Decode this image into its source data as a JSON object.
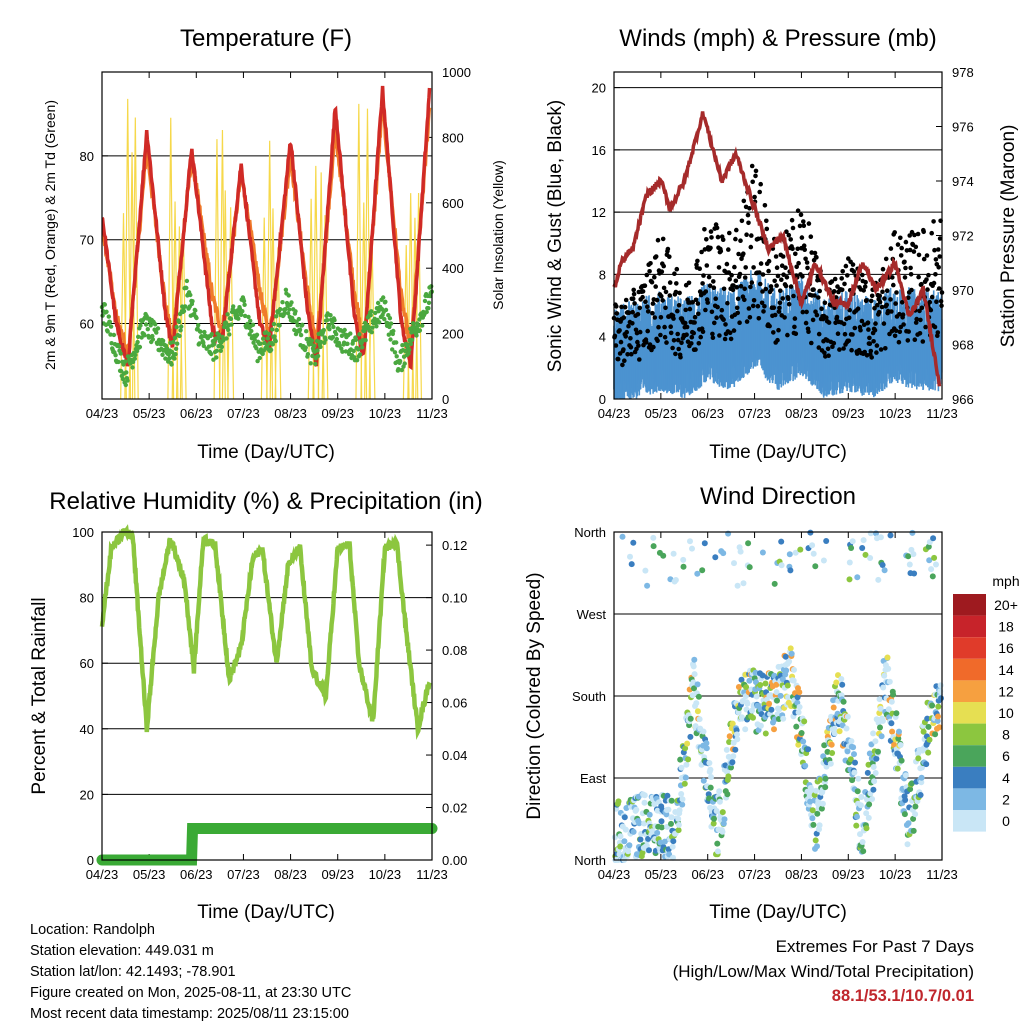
{
  "meta": {
    "location": "Location: Randolph",
    "elevation": "Station elevation: 449.031 m",
    "latlon": "Station lat/lon: 42.1493; -78.901",
    "created": "Figure created on Mon, 2025-08-11, at 23:30 UTC",
    "latest": "Most recent data timestamp: 2025/08/11 23:15:00"
  },
  "extremes": {
    "title": "Extremes For Past 7 Days",
    "subtitle": "(High/Low/Max Wind/Total Precipitation)",
    "values": "88.1/53.1/10.7/0.01",
    "color": "#c0272d"
  },
  "x_ticks": [
    "04/23",
    "05/23",
    "06/23",
    "07/23",
    "08/23",
    "09/23",
    "10/23",
    "11/23"
  ],
  "x_label": "Time (Day/UTC)",
  "speed_legend": {
    "title": "mph",
    "levels": [
      "20+",
      "18",
      "16",
      "14",
      "12",
      "10",
      "8",
      "6",
      "4",
      "2",
      "0"
    ],
    "colors": [
      "#9e1a1f",
      "#c7232a",
      "#e03b2a",
      "#f06a2a",
      "#f6a040",
      "#e6df52",
      "#8cc63f",
      "#4aa55b",
      "#3a7ec0",
      "#7db8e4",
      "#c9e6f6"
    ]
  },
  "chart_data": [
    {
      "type": "line",
      "title": "Temperature (F)",
      "xlabel": "Time (Day/UTC)",
      "ylabel": "2m & 9m T (Red, Orange) & 2m Td (Green)",
      "ylabel_right": "Solar Insolation (Yellow)",
      "xlim": [
        0,
        7
      ],
      "ylim": [
        51,
        90
      ],
      "yticks": [
        60,
        70,
        80
      ],
      "ylim_right": [
        0,
        1000
      ],
      "yticks_right": [
        0,
        200,
        400,
        600,
        800,
        1000
      ],
      "grid": true,
      "series": [
        {
          "name": "2m T",
          "color": "#d02a26",
          "x": [
            0,
            0.3,
            0.55,
            0.95,
            1.35,
            1.5,
            1.9,
            2.35,
            2.55,
            2.95,
            3.35,
            3.55,
            4.0,
            4.35,
            4.55,
            4.95,
            5.35,
            5.55,
            5.95,
            6.35,
            6.55,
            6.95
          ],
          "values": [
            73,
            60,
            55,
            83,
            61,
            57,
            81,
            59,
            58,
            79,
            60,
            57,
            82,
            62,
            55,
            86,
            61,
            56,
            88,
            60,
            55,
            88
          ]
        },
        {
          "name": "9m T",
          "color": "#f07c2b",
          "x": [
            0,
            0.3,
            0.55,
            0.95,
            1.35,
            1.5,
            1.9,
            2.35,
            2.55,
            2.95,
            3.35,
            3.55,
            4.0,
            4.35,
            4.55,
            4.95,
            5.35,
            5.55,
            5.95,
            6.35,
            6.55,
            6.95
          ],
          "values": [
            72,
            61,
            56,
            81,
            62,
            58,
            80,
            63,
            59,
            78,
            64,
            58,
            80,
            64,
            57,
            83,
            64,
            57,
            86,
            63,
            57,
            86
          ]
        },
        {
          "name": "2m Td",
          "color": "#4aa83f",
          "x": [
            0,
            0.3,
            0.5,
            0.9,
            1.2,
            1.5,
            1.8,
            2.1,
            2.4,
            2.7,
            3.0,
            3.3,
            3.6,
            3.9,
            4.2,
            4.5,
            4.8,
            5.1,
            5.4,
            5.7,
            6.0,
            6.3,
            6.6,
            6.95
          ],
          "values": [
            62,
            57,
            54,
            60,
            58,
            56,
            64,
            58,
            57,
            60,
            62,
            57,
            58,
            63,
            59,
            56,
            60,
            58,
            57,
            60,
            62,
            55,
            59,
            63
          ]
        },
        {
          "name": "Solar Insolation",
          "axis": "right",
          "color": "#f6d84a",
          "x": [
            0.2,
            0.45,
            0.7,
            1.2,
            1.45,
            1.7,
            2.2,
            2.45,
            2.7,
            3.2,
            3.45,
            3.7,
            4.2,
            4.45,
            4.7,
            5.2,
            5.45,
            5.7,
            6.2,
            6.45,
            6.7
          ],
          "values": [
            0,
            920,
            0,
            0,
            950,
            0,
            0,
            900,
            0,
            0,
            850,
            0,
            0,
            980,
            0,
            0,
            970,
            0,
            0,
            940,
            0
          ]
        }
      ]
    },
    {
      "type": "scatter",
      "title": "Winds (mph) & Pressure (mb)",
      "xlabel": "Time (Day/UTC)",
      "ylabel": "Sonic Wind & Gust (Blue, Black)",
      "ylabel_right": "Station Pressure (Maroon)",
      "xlim": [
        0,
        7
      ],
      "ylim": [
        0,
        21
      ],
      "yticks": [
        0,
        4,
        8,
        12,
        16,
        20
      ],
      "ylim_right": [
        966,
        978
      ],
      "yticks_right": [
        966,
        968,
        970,
        972,
        974,
        976,
        978
      ],
      "grid": true,
      "series": [
        {
          "name": "Sonic Wind",
          "color": "#4c93d0",
          "x": [
            0,
            0.5,
            1.0,
            1.5,
            2.0,
            2.5,
            3.0,
            3.5,
            4.0,
            4.5,
            5.0,
            5.5,
            6.0,
            6.5,
            7.0
          ],
          "values": [
            2.5,
            3,
            3.5,
            3,
            4,
            3.5,
            5,
            3.5,
            4.5,
            3,
            3.5,
            3,
            4,
            3.5,
            3.5
          ]
        },
        {
          "name": "Gust",
          "color": "#000000",
          "x": [
            0,
            0.5,
            1.0,
            1.5,
            2.0,
            2.5,
            3.0,
            3.5,
            4.0,
            4.5,
            5.0,
            5.5,
            6.0,
            6.5,
            7.0
          ],
          "values": [
            5,
            6,
            9,
            6,
            10,
            9,
            13,
            8,
            11,
            6,
            8,
            6,
            9,
            9,
            10
          ]
        },
        {
          "name": "Station Pressure",
          "axis": "right",
          "color": "#a52a2a",
          "x": [
            0,
            0.15,
            0.4,
            0.7,
            1.0,
            1.2,
            1.5,
            1.9,
            2.3,
            2.6,
            3.0,
            3.3,
            3.6,
            4.0,
            4.3,
            4.7,
            5.0,
            5.3,
            5.6,
            6.0,
            6.3,
            6.6,
            6.95
          ],
          "values": [
            970,
            971,
            971.5,
            973.5,
            974,
            973,
            974,
            976.5,
            974,
            975,
            973,
            971.5,
            972,
            969.5,
            971,
            969.5,
            969.5,
            971,
            970,
            971,
            969,
            970,
            966.5
          ]
        }
      ]
    },
    {
      "type": "line",
      "title": "Relative Humidity (%) & Precipitation (in)",
      "xlabel": "Time (Day/UTC)",
      "ylabel": "Percent & Total Rainfall",
      "xlim": [
        0,
        7
      ],
      "ylim": [
        0,
        100
      ],
      "yticks": [
        0,
        20,
        40,
        60,
        80,
        100
      ],
      "ylim_right": [
        0,
        0.125
      ],
      "yticks_right": [
        "0.00",
        "0.02",
        "0.04",
        "0.06",
        "0.08",
        "0.10",
        "0.12"
      ],
      "grid": true,
      "series": [
        {
          "name": "Relative Humidity",
          "color": "#8cc63f",
          "x": [
            0,
            0.2,
            0.45,
            0.65,
            0.95,
            1.2,
            1.45,
            1.75,
            1.95,
            2.15,
            2.4,
            2.7,
            2.95,
            3.2,
            3.4,
            3.7,
            3.95,
            4.2,
            4.45,
            4.75,
            5.0,
            5.25,
            5.45,
            5.75,
            6.0,
            6.25,
            6.45,
            6.7,
            6.95
          ],
          "values": [
            72,
            95,
            100,
            99,
            40,
            80,
            98,
            85,
            58,
            98,
            96,
            55,
            65,
            92,
            95,
            60,
            90,
            95,
            58,
            50,
            95,
            96,
            60,
            42,
            95,
            97,
            70,
            40,
            55
          ]
        },
        {
          "name": "Total Rainfall",
          "axis": "right",
          "color": "#3aaa35",
          "x": [
            0,
            1.9,
            1.92,
            7
          ],
          "values": [
            0,
            0,
            0.012,
            0.012
          ]
        }
      ]
    },
    {
      "type": "scatter",
      "title": "Wind Direction",
      "xlabel": "Time (Day/UTC)",
      "ylabel": "Direction (Colored By Speed)",
      "xlim": [
        0,
        7
      ],
      "ylim": [
        0,
        360
      ],
      "yticks": [
        "North",
        "East",
        "South",
        "West",
        "North"
      ],
      "grid": true,
      "series": [
        {
          "name": "Direction",
          "x": [
            0.2,
            0.7,
            1.3,
            1.7,
            2.2,
            2.7,
            3.3,
            3.8,
            4.3,
            4.8,
            5.3,
            5.8,
            6.3,
            6.8
          ],
          "values": [
            30,
            40,
            35,
            190,
            30,
            180,
            170,
            200,
            40,
            180,
            30,
            200,
            40,
            170
          ]
        }
      ]
    }
  ]
}
